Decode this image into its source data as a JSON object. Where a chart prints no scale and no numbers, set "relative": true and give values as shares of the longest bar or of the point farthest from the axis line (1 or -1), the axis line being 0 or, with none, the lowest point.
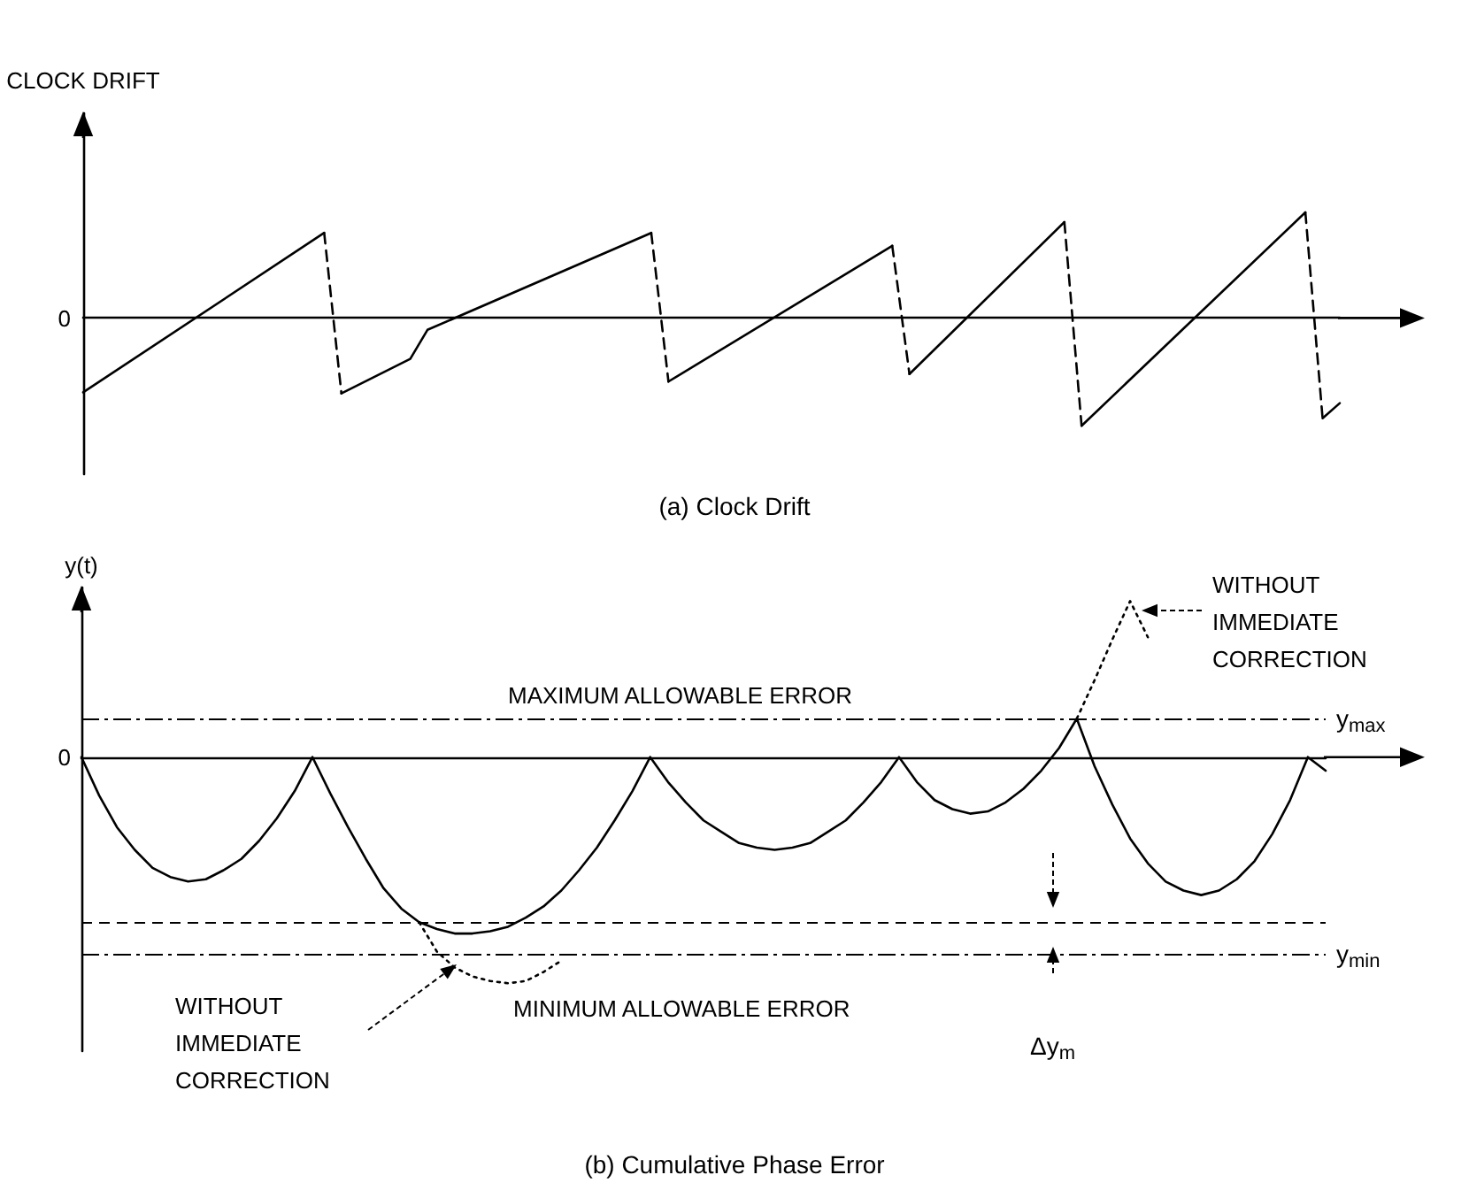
{
  "chart_data": [
    {
      "type": "line",
      "relative": true,
      "title": "(a) Clock Drift",
      "ylabel": "CLOCK DRIFT",
      "categories": [
        null,
        null,
        null,
        null,
        null,
        null,
        null,
        null,
        null,
        null,
        null,
        null,
        null,
        null,
        null,
        null,
        null,
        null,
        null,
        null,
        null,
        null,
        null,
        null,
        null,
        null,
        null,
        null,
        null,
        null,
        null,
        null,
        null,
        null,
        null,
        null,
        null,
        null,
        null,
        null,
        null,
        null,
        null,
        null,
        null,
        null,
        null,
        null,
        null,
        null,
        null,
        null,
        null,
        null,
        null,
        null,
        null,
        null,
        null,
        null,
        null,
        null,
        null,
        null,
        null,
        null,
        null,
        null,
        null,
        null,
        null,
        null,
        null,
        null
      ],
      "annotations": [
        "0"
      ],
      "series": [
        {
          "color": "#000000",
          "line_style": "solid",
          "values": [
            -0.69,
            null,
            null,
            null,
            null,
            null,
            null,
            null,
            null,
            null,
            null,
            null,
            null,
            null,
            0.79,
            null,
            null,
            null,
            null,
            null,
            null,
            null,
            null,
            null,
            null,
            null,
            null,
            null,
            null,
            null,
            null,
            null,
            null,
            null,
            null,
            null,
            null,
            null,
            null,
            null,
            null,
            null,
            null,
            null,
            null,
            null,
            null,
            null,
            null,
            null,
            null,
            null,
            null,
            null,
            null,
            null,
            null,
            null,
            null,
            null,
            null,
            null,
            null,
            null,
            null,
            null,
            null,
            null,
            null,
            null,
            null,
            null,
            null,
            null
          ]
        },
        {
          "color": "#000000",
          "line_style": "dashed",
          "values": [
            null,
            null,
            null,
            null,
            null,
            null,
            null,
            null,
            null,
            null,
            null,
            null,
            null,
            null,
            0.79,
            -0.7,
            null,
            null,
            null,
            null,
            null,
            null,
            null,
            null,
            null,
            null,
            null,
            null,
            null,
            null,
            null,
            null,
            null,
            null,
            null,
            null,
            null,
            null,
            null,
            null,
            null,
            null,
            null,
            null,
            null,
            null,
            null,
            null,
            null,
            null,
            null,
            null,
            null,
            null,
            null,
            null,
            null,
            null,
            null,
            null,
            null,
            null,
            null,
            null,
            null,
            null,
            null,
            null,
            null,
            null,
            null,
            null,
            null,
            null
          ]
        },
        {
          "color": "#000000",
          "line_style": "solid",
          "values": [
            null,
            null,
            null,
            null,
            null,
            null,
            null,
            null,
            null,
            null,
            null,
            null,
            null,
            null,
            null,
            -0.7,
            null,
            null,
            null,
            -0.38,
            -0.11,
            null,
            null,
            null,
            null,
            null,
            null,
            null,
            null,
            null,
            null,
            null,
            null,
            0.79,
            null,
            null,
            null,
            null,
            null,
            null,
            null,
            null,
            null,
            null,
            null,
            null,
            null,
            null,
            null,
            null,
            null,
            null,
            null,
            null,
            null,
            null,
            null,
            null,
            null,
            null,
            null,
            null,
            null,
            null,
            null,
            null,
            null,
            null,
            null,
            null,
            null,
            null,
            null,
            null
          ]
        },
        {
          "color": "#000000",
          "line_style": "dashed",
          "values": [
            null,
            null,
            null,
            null,
            null,
            null,
            null,
            null,
            null,
            null,
            null,
            null,
            null,
            null,
            null,
            null,
            null,
            null,
            null,
            null,
            null,
            null,
            null,
            null,
            null,
            null,
            null,
            null,
            null,
            null,
            null,
            null,
            null,
            0.79,
            -0.59,
            null,
            null,
            null,
            null,
            null,
            null,
            null,
            null,
            null,
            null,
            null,
            null,
            null,
            null,
            null,
            null,
            null,
            null,
            null,
            null,
            null,
            null,
            null,
            null,
            null,
            null,
            null,
            null,
            null,
            null,
            null,
            null,
            null,
            null,
            null,
            null,
            null,
            null,
            null
          ]
        },
        {
          "color": "#000000",
          "line_style": "solid",
          "values": [
            null,
            null,
            null,
            null,
            null,
            null,
            null,
            null,
            null,
            null,
            null,
            null,
            null,
            null,
            null,
            null,
            null,
            null,
            null,
            null,
            null,
            null,
            null,
            null,
            null,
            null,
            null,
            null,
            null,
            null,
            null,
            null,
            null,
            null,
            -0.59,
            null,
            null,
            null,
            null,
            null,
            null,
            null,
            null,
            null,
            null,
            null,
            null,
            0.67,
            null,
            null,
            null,
            null,
            null,
            null,
            null,
            null,
            null,
            null,
            null,
            null,
            null,
            null,
            null,
            null,
            null,
            null,
            null,
            null,
            null,
            null,
            null,
            null,
            null,
            null
          ]
        },
        {
          "color": "#000000",
          "line_style": "dashed",
          "values": [
            null,
            null,
            null,
            null,
            null,
            null,
            null,
            null,
            null,
            null,
            null,
            null,
            null,
            null,
            null,
            null,
            null,
            null,
            null,
            null,
            null,
            null,
            null,
            null,
            null,
            null,
            null,
            null,
            null,
            null,
            null,
            null,
            null,
            null,
            null,
            null,
            null,
            null,
            null,
            null,
            null,
            null,
            null,
            null,
            null,
            null,
            null,
            0.67,
            -0.52,
            null,
            null,
            null,
            null,
            null,
            null,
            null,
            null,
            null,
            null,
            null,
            null,
            null,
            null,
            null,
            null,
            null,
            null,
            null,
            null,
            null,
            null,
            null,
            null,
            null
          ]
        },
        {
          "color": "#000000",
          "line_style": "solid",
          "values": [
            null,
            null,
            null,
            null,
            null,
            null,
            null,
            null,
            null,
            null,
            null,
            null,
            null,
            null,
            null,
            null,
            null,
            null,
            null,
            null,
            null,
            null,
            null,
            null,
            null,
            null,
            null,
            null,
            null,
            null,
            null,
            null,
            null,
            null,
            null,
            null,
            null,
            null,
            null,
            null,
            null,
            null,
            null,
            null,
            null,
            null,
            null,
            null,
            -0.52,
            null,
            null,
            null,
            null,
            null,
            null,
            null,
            null,
            0.89,
            null,
            null,
            null,
            null,
            null,
            null,
            null,
            null,
            null,
            null,
            null,
            null,
            null,
            null,
            null,
            null
          ]
        },
        {
          "color": "#000000",
          "line_style": "dashed",
          "values": [
            null,
            null,
            null,
            null,
            null,
            null,
            null,
            null,
            null,
            null,
            null,
            null,
            null,
            null,
            null,
            null,
            null,
            null,
            null,
            null,
            null,
            null,
            null,
            null,
            null,
            null,
            null,
            null,
            null,
            null,
            null,
            null,
            null,
            null,
            null,
            null,
            null,
            null,
            null,
            null,
            null,
            null,
            null,
            null,
            null,
            null,
            null,
            null,
            null,
            null,
            null,
            null,
            null,
            null,
            null,
            null,
            null,
            0.89,
            -1.0,
            null,
            null,
            null,
            null,
            null,
            null,
            null,
            null,
            null,
            null,
            null,
            null,
            null,
            null,
            null
          ]
        },
        {
          "color": "#000000",
          "line_style": "solid",
          "values": [
            null,
            null,
            null,
            null,
            null,
            null,
            null,
            null,
            null,
            null,
            null,
            null,
            null,
            null,
            null,
            null,
            null,
            null,
            null,
            null,
            null,
            null,
            null,
            null,
            null,
            null,
            null,
            null,
            null,
            null,
            null,
            null,
            null,
            null,
            null,
            null,
            null,
            null,
            null,
            null,
            null,
            null,
            null,
            null,
            null,
            null,
            null,
            null,
            null,
            null,
            null,
            null,
            null,
            null,
            null,
            null,
            null,
            null,
            -1.0,
            null,
            null,
            null,
            null,
            null,
            null,
            null,
            null,
            null,
            null,
            null,
            null,
            0.98,
            null,
            null
          ]
        },
        {
          "color": "#000000",
          "line_style": "dashed",
          "values": [
            null,
            null,
            null,
            null,
            null,
            null,
            null,
            null,
            null,
            null,
            null,
            null,
            null,
            null,
            null,
            null,
            null,
            null,
            null,
            null,
            null,
            null,
            null,
            null,
            null,
            null,
            null,
            null,
            null,
            null,
            null,
            null,
            null,
            null,
            null,
            null,
            null,
            null,
            null,
            null,
            null,
            null,
            null,
            null,
            null,
            null,
            null,
            null,
            null,
            null,
            null,
            null,
            null,
            null,
            null,
            null,
            null,
            null,
            null,
            null,
            null,
            null,
            null,
            null,
            null,
            null,
            null,
            null,
            null,
            null,
            null,
            0.98,
            -0.93,
            null
          ]
        },
        {
          "color": "#000000",
          "line_style": "solid",
          "values": [
            null,
            null,
            null,
            null,
            null,
            null,
            null,
            null,
            null,
            null,
            null,
            null,
            null,
            null,
            null,
            null,
            null,
            null,
            null,
            null,
            null,
            null,
            null,
            null,
            null,
            null,
            null,
            null,
            null,
            null,
            null,
            null,
            null,
            null,
            null,
            null,
            null,
            null,
            null,
            null,
            null,
            null,
            null,
            null,
            null,
            null,
            null,
            null,
            null,
            null,
            null,
            null,
            null,
            null,
            null,
            null,
            null,
            null,
            null,
            null,
            null,
            null,
            null,
            null,
            null,
            null,
            null,
            null,
            null,
            null,
            null,
            null,
            -0.93,
            -0.79
          ]
        }
      ]
    },
    {
      "type": "line",
      "relative": true,
      "title": "(b) Cumulative Phase Error",
      "ylabel": "y(t)",
      "categories": [
        null,
        null,
        null,
        null,
        null,
        null,
        null,
        null,
        null,
        null,
        null,
        null,
        null,
        null,
        null,
        null,
        null,
        null,
        null,
        null,
        null,
        null,
        null,
        null,
        null,
        null,
        null,
        null,
        null,
        null,
        null,
        null,
        null,
        null,
        null,
        null,
        null,
        null,
        null,
        null,
        null,
        null,
        null,
        null,
        null,
        null,
        null,
        null,
        null,
        null,
        null,
        null,
        null,
        null,
        null,
        null,
        null,
        null,
        null,
        null,
        null,
        null,
        null,
        null,
        null,
        null,
        null,
        null,
        null,
        null,
        null
      ],
      "annotations": [
        "0",
        {
          "text": "MAXIMUM ALLOWABLE ERROR",
          "y": 0.17
        },
        {
          "text": "MINIMUM ALLOWABLE ERROR",
          "y": -0.87
        },
        "WITHOUT IMMEDIATE CORRECTION",
        "WITHOUT IMMEDIATE CORRECTION",
        "Δy$_{m}$"
      ],
      "ref_lines": [
        {
          "axis": "y",
          "value": 0.17,
          "label": "y$_{max}$",
          "color": "#000000",
          "line_style": "dashdot"
        },
        {
          "axis": "y",
          "value": -0.73,
          "label": null,
          "color": "#000000",
          "line_style": "dashed"
        },
        {
          "axis": "y",
          "value": -0.87,
          "label": "y$_{min}$",
          "color": "#000000",
          "line_style": "dashdot"
        }
      ],
      "series": [
        {
          "color": "#000000",
          "line_style": "solid",
          "values": [
            0,
            -0.17,
            -0.31,
            -0.41,
            -0.49,
            -0.53,
            -0.55,
            -0.54,
            -0.5,
            -0.45,
            -0.37,
            -0.27,
            -0.15,
            0,
            -0.16,
            -0.31,
            -0.45,
            -0.58,
            -0.67,
            -0.73,
            -0.76,
            -0.78,
            -0.78,
            -0.77,
            -0.75,
            -0.71,
            -0.66,
            -0.59,
            -0.5,
            -0.4,
            -0.28,
            -0.15,
            0,
            -0.11,
            -0.2,
            -0.28,
            -0.33,
            -0.38,
            -0.4,
            -0.41,
            -0.4,
            -0.38,
            -0.33,
            -0.28,
            -0.2,
            -0.11,
            0,
            -0.11,
            -0.19,
            -0.23,
            -0.25,
            -0.24,
            -0.2,
            -0.14,
            -0.06,
            0.04,
            0.17,
            -0.04,
            -0.21,
            -0.36,
            -0.47,
            -0.55,
            -0.59,
            -0.61,
            -0.59,
            -0.54,
            -0.46,
            -0.34,
            -0.19,
            0,
            -0.06
          ]
        },
        {
          "color": "#000000",
          "line_style": "dotted",
          "values": [
            null,
            null,
            null,
            null,
            null,
            null,
            null,
            null,
            null,
            null,
            null,
            null,
            null,
            null,
            null,
            null,
            null,
            null,
            null,
            -0.73,
            -0.86,
            -0.93,
            -0.97,
            -0.99,
            -1.0,
            -0.99,
            -0.95,
            -0.9,
            null,
            null,
            null,
            null,
            null,
            null,
            null,
            null,
            null,
            null,
            null,
            null,
            null,
            null,
            null,
            null,
            null,
            null,
            null,
            null,
            null,
            null,
            null,
            null,
            null,
            null,
            null,
            null,
            null,
            null,
            null,
            null,
            null,
            null,
            null,
            null,
            null,
            null,
            null,
            null,
            null,
            null,
            null
          ]
        },
        {
          "color": "#000000",
          "line_style": "dotted",
          "values": [
            null,
            null,
            null,
            null,
            null,
            null,
            null,
            null,
            null,
            null,
            null,
            null,
            null,
            null,
            null,
            null,
            null,
            null,
            null,
            null,
            null,
            null,
            null,
            null,
            null,
            null,
            null,
            null,
            null,
            null,
            null,
            null,
            null,
            null,
            null,
            null,
            null,
            null,
            null,
            null,
            null,
            null,
            null,
            null,
            null,
            null,
            null,
            null,
            null,
            null,
            null,
            null,
            null,
            null,
            null,
            null,
            0.17,
            0.34,
            0.52,
            0.69,
            0.53,
            null,
            null,
            null,
            null,
            null,
            null,
            null,
            null,
            null,
            null
          ]
        }
      ]
    }
  ]
}
